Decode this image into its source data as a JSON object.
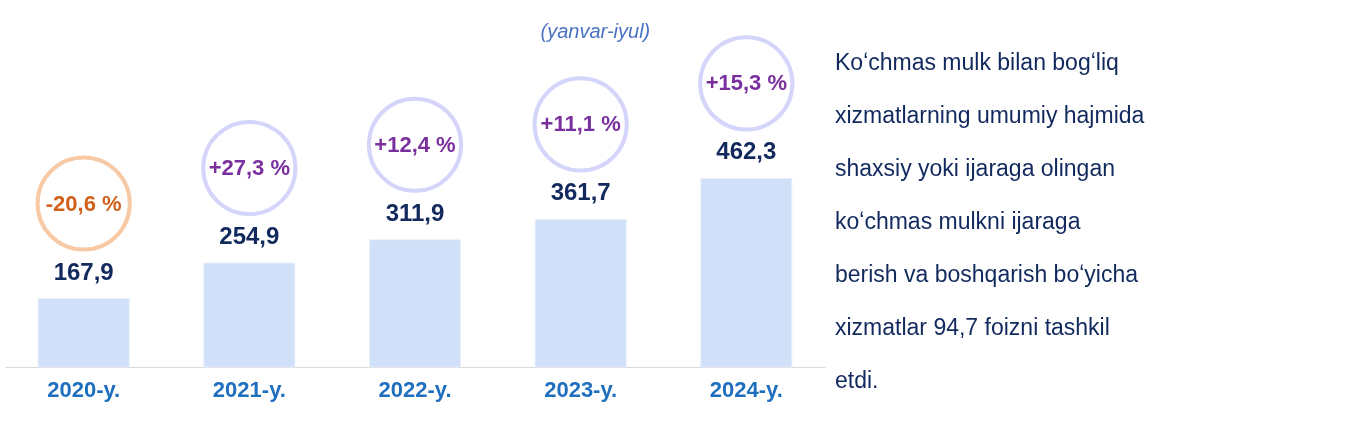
{
  "chart_data": {
    "type": "bar",
    "categories": [
      "2020-y.",
      "2021-y.",
      "2022-y.",
      "2023-y.",
      "2024-y."
    ],
    "values": [
      167.9,
      254.9,
      311.9,
      361.7,
      462.3
    ],
    "value_labels": [
      "167,9",
      "254,9",
      "311,9",
      "361,7",
      "462,3"
    ],
    "color": "#cfe0f8",
    "annotations": [
      "-20,6 %",
      "+27,3 %",
      "+12,4 %",
      "+11,1 %",
      "+15,3 %",
      "(yanvar-iyul)",
      "Koʻchmas mulk bilan bogʻliq xizmatlarning umumiy hajmida shaxsiy yoki ijaraga olingan koʻchmas mulkni ijaraga berish va boshqarish boʻyicha xizmatlar 94,7 foizni tashkil etdi."
    ]
  }
}
